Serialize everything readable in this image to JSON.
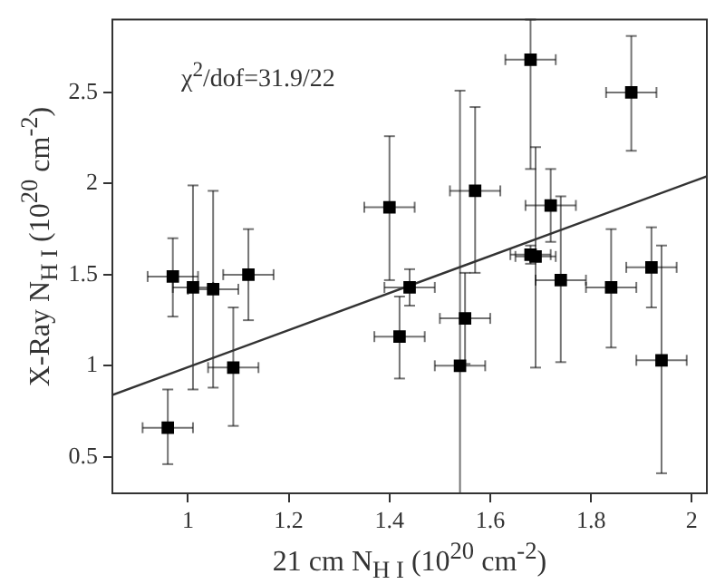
{
  "chart_data": {
    "type": "scatter",
    "xlabel": "21 cm N$_{H I}$ (10$^{20}$ cm$^{-2}$)",
    "ylabel": "X-Ray N$_{H I}$ (10$^{20}$ cm$^{-2}$)",
    "annotations": [
      "χ$^{2}$/dof=31.9/22"
    ],
    "xlim": [
      0.85,
      2.03
    ],
    "ylim": [
      0.3,
      2.9
    ],
    "xticks": [
      1,
      1.2,
      1.4,
      1.6,
      1.8,
      2
    ],
    "yticks": [
      0.5,
      1,
      1.5,
      2,
      2.5
    ],
    "grid": false,
    "legend": false,
    "marker": "square",
    "series": [
      {
        "color": "#000000",
        "x": [
          0.97,
          1.01,
          1.05,
          1.09,
          1.12,
          0.96,
          1.4,
          1.44,
          1.42,
          1.68,
          1.88,
          1.57,
          1.72,
          1.68,
          1.69,
          1.74,
          1.55,
          1.54,
          1.84,
          1.92,
          1.94
        ],
        "values": [
          1.49,
          1.43,
          1.42,
          0.99,
          1.5,
          0.66,
          1.87,
          1.43,
          1.16,
          2.68,
          2.5,
          1.96,
          1.88,
          1.61,
          1.6,
          1.47,
          1.26,
          1.0,
          1.43,
          1.54,
          1.03
        ],
        "errors": [
          [
            1.27,
            1.7
          ],
          [
            0.87,
            1.99
          ],
          [
            0.88,
            1.96
          ],
          [
            0.67,
            1.32
          ],
          [
            1.25,
            1.75
          ],
          [
            0.46,
            0.87
          ],
          [
            1.47,
            2.26
          ],
          [
            1.33,
            1.53
          ],
          [
            0.93,
            1.38
          ],
          [
            2.08,
            2.9
          ],
          [
            2.18,
            2.81
          ],
          [
            1.51,
            2.42
          ],
          [
            1.68,
            2.08
          ],
          [
            1.56,
            1.66
          ],
          [
            0.99,
            2.2
          ],
          [
            1.02,
            1.93
          ],
          [
            1.01,
            1.51
          ],
          [
            0.3,
            2.51
          ],
          [
            1.1,
            1.75
          ],
          [
            1.32,
            1.76
          ],
          [
            0.41,
            1.66
          ]
        ],
        "xerrors": [
          [
            0.92,
            1.02
          ],
          [
            0.97,
            1.05
          ],
          [
            1.0,
            1.1
          ],
          [
            1.04,
            1.14
          ],
          [
            1.07,
            1.17
          ],
          [
            0.91,
            1.01
          ],
          [
            1.35,
            1.45
          ],
          [
            1.39,
            1.49
          ],
          [
            1.37,
            1.47
          ],
          [
            1.63,
            1.73
          ],
          [
            1.83,
            1.93
          ],
          [
            1.52,
            1.62
          ],
          [
            1.67,
            1.77
          ],
          [
            1.64,
            1.72
          ],
          [
            1.65,
            1.73
          ],
          [
            1.69,
            1.79
          ],
          [
            1.5,
            1.6
          ],
          [
            1.49,
            1.59
          ],
          [
            1.79,
            1.89
          ],
          [
            1.87,
            1.97
          ],
          [
            1.89,
            1.99
          ]
        ]
      },
      {
        "type": "line",
        "color": "#333333",
        "marker": "none",
        "x": [
          0.85,
          2.03
        ],
        "values": [
          0.84,
          2.04
        ]
      }
    ]
  }
}
